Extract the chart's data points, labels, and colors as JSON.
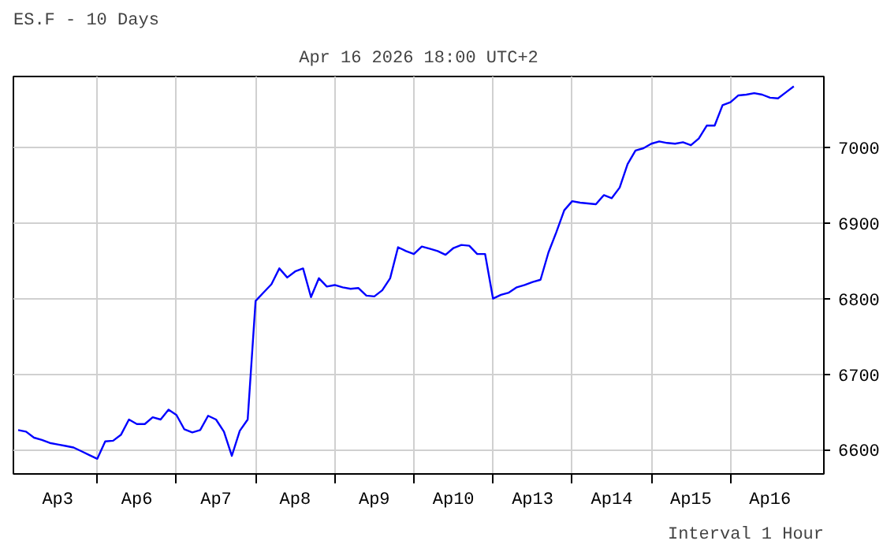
{
  "chart_data": {
    "type": "line",
    "title": "ES.F - 10 Days",
    "subtitle": "Apr 16 2026 18:00 UTC+2",
    "annotations": [
      "Interval 1 Hour"
    ],
    "categories": [
      null,
      null,
      null,
      null,
      null,
      "Ap3",
      null,
      null,
      null,
      null,
      null,
      null,
      null,
      null,
      null,
      "Ap6",
      null,
      null,
      null,
      null,
      null,
      null,
      null,
      null,
      null,
      "Ap7",
      null,
      null,
      null,
      null,
      null,
      null,
      null,
      null,
      null,
      "Ap8",
      null,
      null,
      null,
      null,
      null,
      null,
      null,
      null,
      null,
      "Ap9",
      null,
      null,
      null,
      null,
      null,
      null,
      null,
      null,
      null,
      "Ap10",
      null,
      null,
      null,
      null,
      null,
      null,
      null,
      null,
      null,
      "Ap13",
      null,
      null,
      null,
      null,
      null,
      null,
      null,
      null,
      null,
      "Ap14",
      null,
      null,
      null,
      null,
      null,
      null,
      null,
      null,
      null,
      "Ap15",
      null,
      null,
      null,
      null,
      null,
      null,
      null,
      null,
      null,
      "Ap16",
      null,
      null,
      null
    ],
    "series": [
      {
        "color": "#0000ff",
        "values": [
          6626,
          6624,
          6616,
          6613,
          6609,
          6607,
          6605,
          6603,
          6598,
          6593,
          6588,
          6611,
          6612,
          6620,
          6640,
          6634,
          6634,
          6643,
          6640,
          6653,
          6646,
          6627,
          6623,
          6626,
          6645,
          6640,
          6624,
          6592,
          6625,
          6640,
          6797,
          6808,
          6819,
          6840,
          6828,
          6836,
          6840,
          6802,
          6827,
          6816,
          6818,
          6815,
          6813,
          6814,
          6804,
          6803,
          6811,
          6827,
          6868,
          6863,
          6859,
          6869,
          6866,
          6863,
          6858,
          6867,
          6871,
          6870,
          6859,
          6859,
          6800,
          6805,
          6808,
          6815,
          6818,
          6822,
          6825,
          6861,
          6888,
          6917,
          6929,
          6927,
          6926,
          6925,
          6937,
          6933,
          6947,
          6978,
          6996,
          6999,
          7005,
          7008,
          7006,
          7005,
          7007,
          7003,
          7012,
          7029,
          7029,
          7056,
          7060,
          7069,
          7070,
          7072,
          7070,
          7066,
          7065,
          7073,
          7081
        ]
      }
    ],
    "ylim": [
      6568,
      7094
    ],
    "yticks": [
      6600,
      6700,
      6800,
      6900,
      7000
    ],
    "grid": true,
    "line_style": "solid"
  }
}
